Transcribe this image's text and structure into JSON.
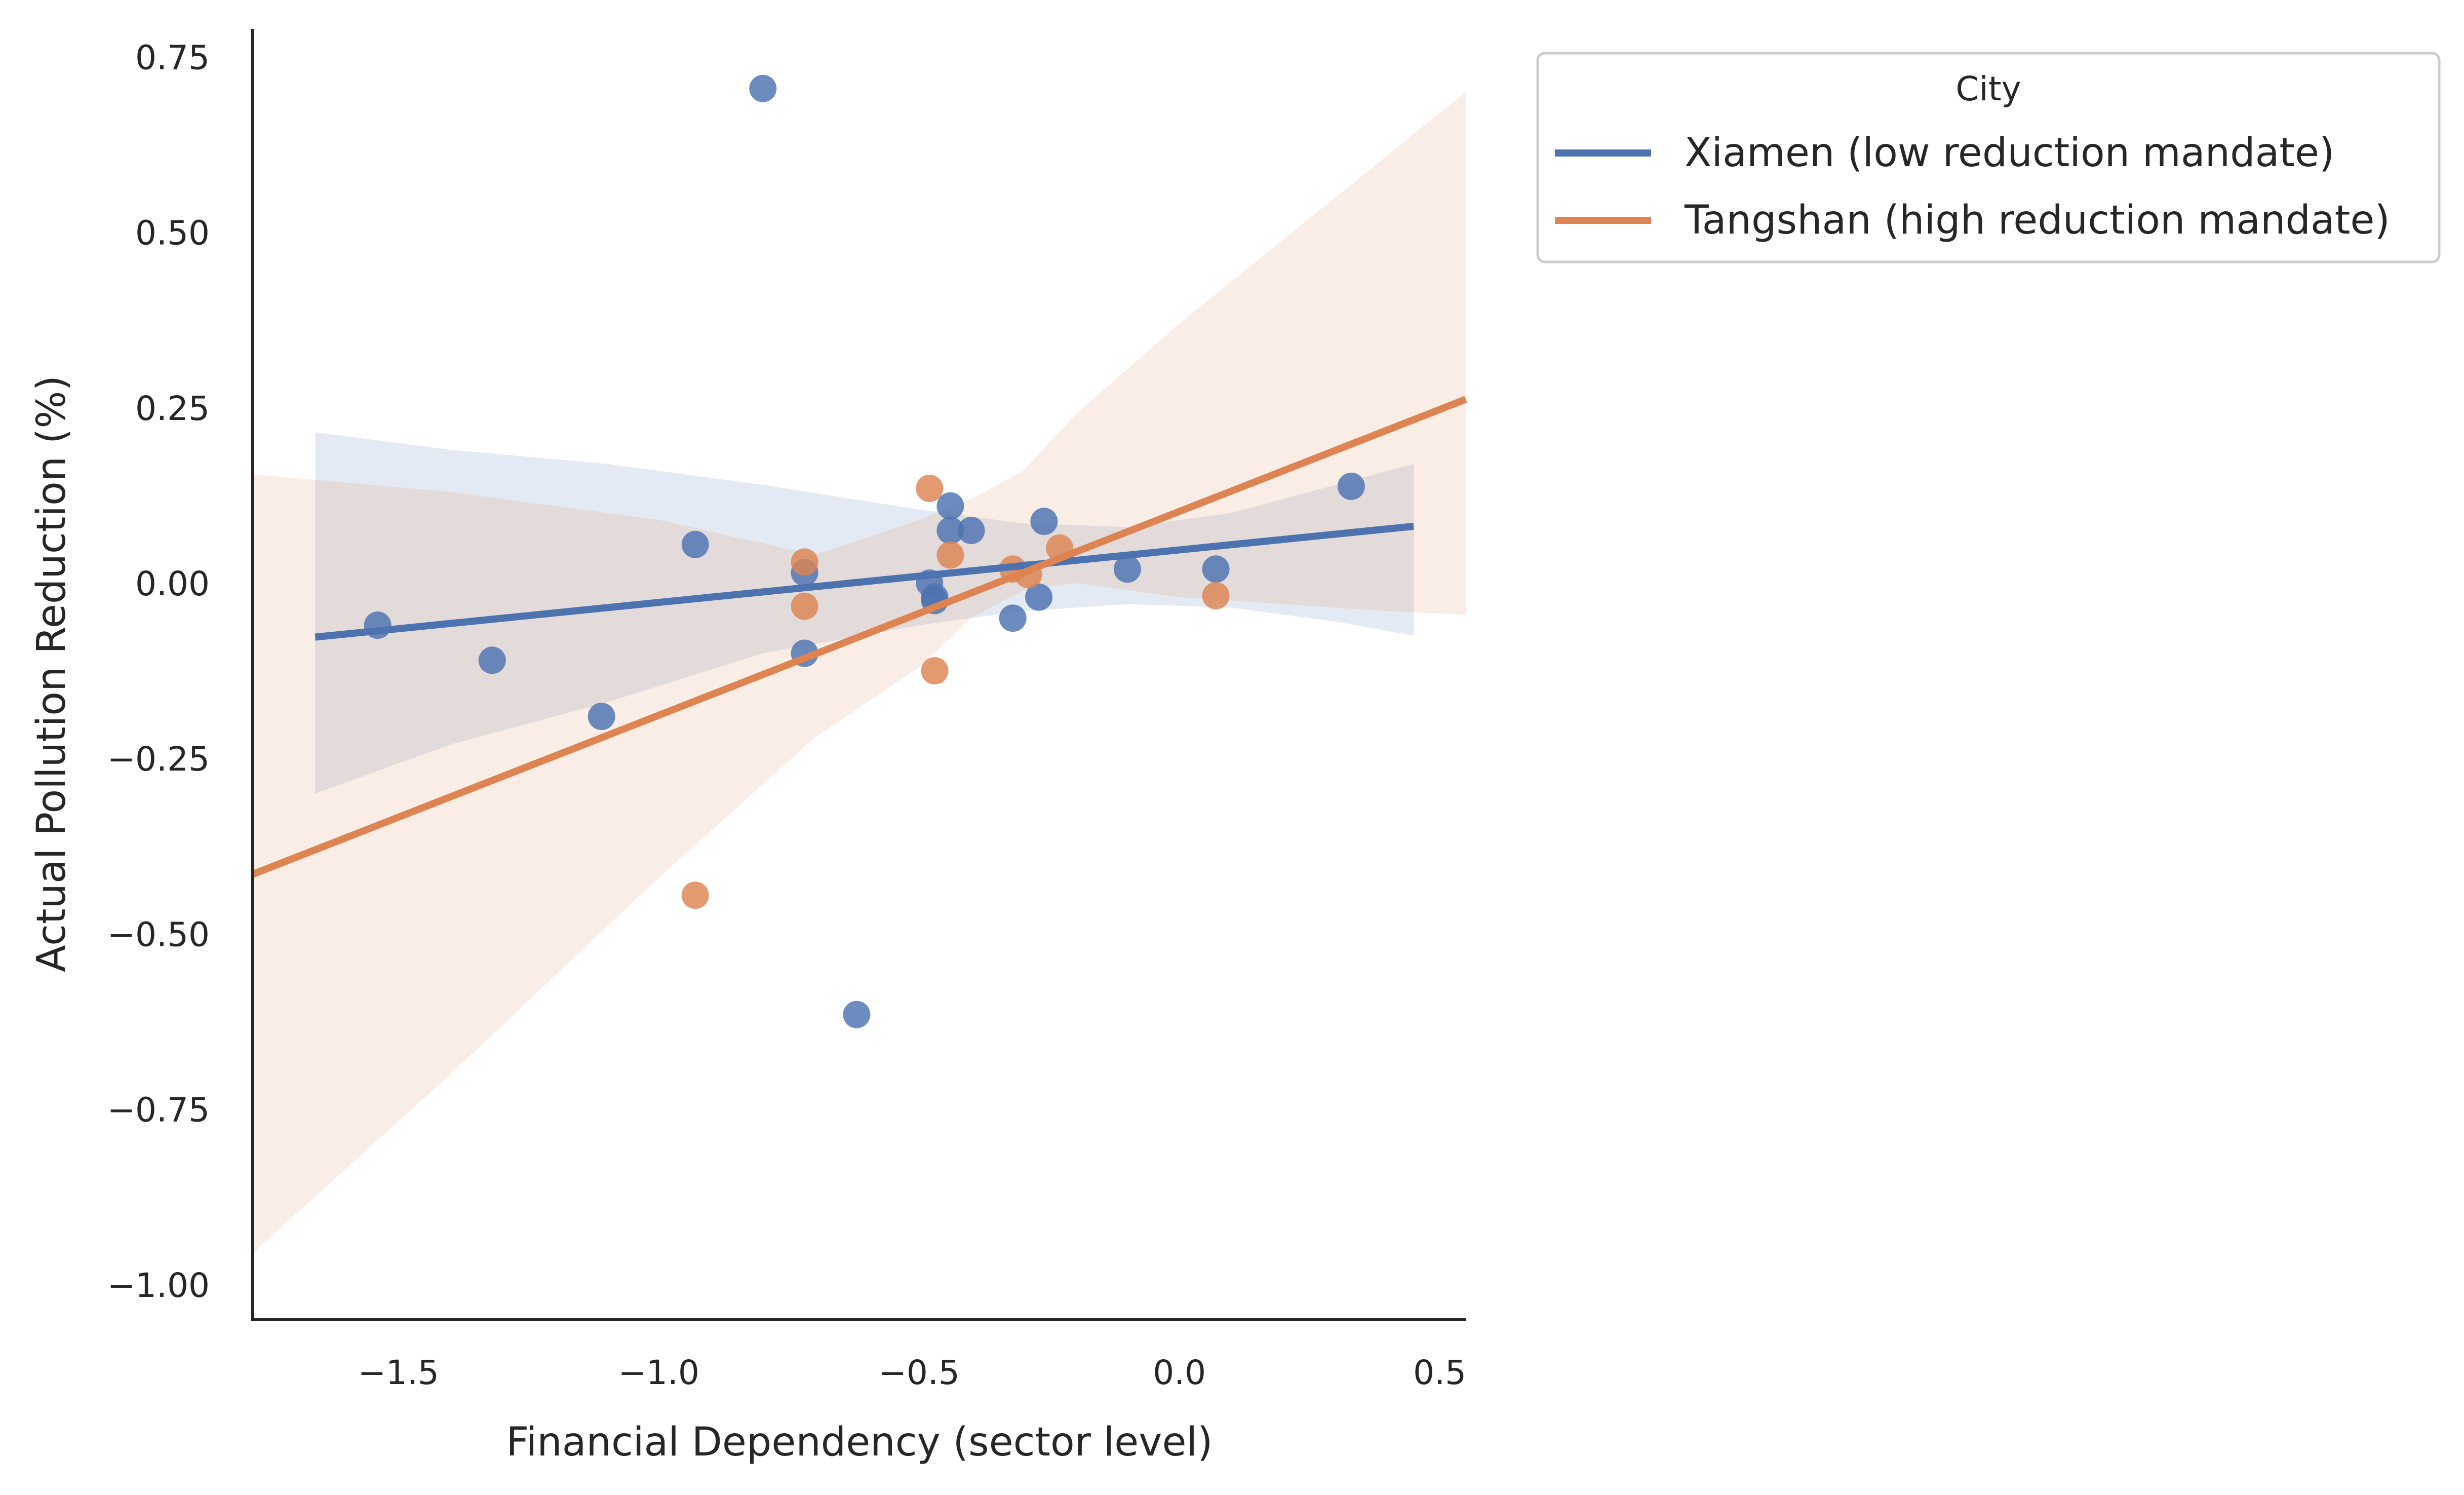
{
  "chart_data": {
    "type": "scatter",
    "xlabel": "Financial Dependency (sector level)",
    "ylabel": "Actual Pollution Reduction (%)",
    "xlim": [
      -1.78,
      0.55
    ],
    "ylim": [
      -1.05,
      0.79
    ],
    "xticks": [
      {
        "value": -1.5,
        "label": "−1.5"
      },
      {
        "value": -1.0,
        "label": "−1.0"
      },
      {
        "value": -0.5,
        "label": "−0.5"
      },
      {
        "value": 0.0,
        "label": "0.0"
      },
      {
        "value": 0.5,
        "label": "0.5"
      }
    ],
    "yticks": [
      {
        "value": 0.75,
        "label": "0.75"
      },
      {
        "value": 0.5,
        "label": "0.50"
      },
      {
        "value": 0.25,
        "label": "0.25"
      },
      {
        "value": 0.0,
        "label": "0.00"
      },
      {
        "value": -0.25,
        "label": "−0.25"
      },
      {
        "value": -0.5,
        "label": "−0.50"
      },
      {
        "value": -0.75,
        "label": "−0.75"
      },
      {
        "value": -1.0,
        "label": "−1.00"
      }
    ],
    "grid": false,
    "legend": {
      "title": "City",
      "placement": "outside-top-right"
    },
    "series": [
      {
        "name": "Xiamen (low reduction mandate)",
        "color": "#4c72b0",
        "points": [
          {
            "x": -1.54,
            "y": -0.06
          },
          {
            "x": -1.32,
            "y": -0.11
          },
          {
            "x": -1.11,
            "y": -0.19
          },
          {
            "x": -0.93,
            "y": 0.055
          },
          {
            "x": -0.8,
            "y": 0.705
          },
          {
            "x": -0.72,
            "y": 0.015
          },
          {
            "x": -0.72,
            "y": -0.1
          },
          {
            "x": -0.62,
            "y": -0.615
          },
          {
            "x": -0.48,
            "y": 0.0
          },
          {
            "x": -0.47,
            "y": -0.02
          },
          {
            "x": -0.47,
            "y": -0.025
          },
          {
            "x": -0.44,
            "y": 0.11
          },
          {
            "x": -0.44,
            "y": 0.075
          },
          {
            "x": -0.4,
            "y": 0.075
          },
          {
            "x": -0.32,
            "y": -0.05
          },
          {
            "x": -0.27,
            "y": -0.02
          },
          {
            "x": -0.26,
            "y": 0.088
          },
          {
            "x": -0.1,
            "y": 0.02
          },
          {
            "x": 0.07,
            "y": 0.02
          },
          {
            "x": 0.33,
            "y": 0.138
          }
        ],
        "fit": {
          "x": [
            -1.66,
            0.45
          ],
          "y": [
            -0.077,
            0.081
          ]
        },
        "ci": {
          "x": [
            -1.66,
            -1.4,
            -1.1,
            -0.8,
            -0.5,
            -0.3,
            -0.1,
            0.1,
            0.3,
            0.45
          ],
          "upper": [
            0.215,
            0.19,
            0.17,
            0.14,
            0.105,
            0.085,
            0.08,
            0.1,
            0.14,
            0.17
          ],
          "lower": [
            -0.3,
            -0.23,
            -0.17,
            -0.1,
            -0.06,
            -0.04,
            -0.03,
            -0.035,
            -0.055,
            -0.075
          ]
        }
      },
      {
        "name": "Tangshan (high reduction mandate)",
        "color": "#dd8452",
        "points": [
          {
            "x": -0.93,
            "y": -0.445
          },
          {
            "x": -0.72,
            "y": 0.03
          },
          {
            "x": -0.72,
            "y": -0.033
          },
          {
            "x": -0.48,
            "y": 0.135
          },
          {
            "x": -0.47,
            "y": -0.125
          },
          {
            "x": -0.44,
            "y": 0.04
          },
          {
            "x": -0.32,
            "y": 0.02
          },
          {
            "x": -0.29,
            "y": 0.012
          },
          {
            "x": -0.23,
            "y": 0.05
          },
          {
            "x": 0.07,
            "y": -0.018
          }
        ],
        "fit": {
          "x": [
            -1.78,
            0.55
          ],
          "y": [
            -0.415,
            0.262
          ]
        },
        "ci": {
          "x": [
            -1.78,
            -1.4,
            -1.0,
            -0.7,
            -0.5,
            -0.4,
            -0.3,
            -0.2,
            0.0,
            0.2,
            0.4,
            0.55
          ],
          "upper": [
            0.155,
            0.13,
            0.09,
            0.04,
            0.09,
            0.12,
            0.16,
            0.24,
            0.37,
            0.49,
            0.61,
            0.7
          ],
          "lower": [
            -0.955,
            -0.7,
            -0.42,
            -0.22,
            -0.12,
            -0.05,
            -0.01,
            0.0,
            -0.02,
            -0.03,
            -0.04,
            -0.045
          ]
        }
      }
    ]
  }
}
